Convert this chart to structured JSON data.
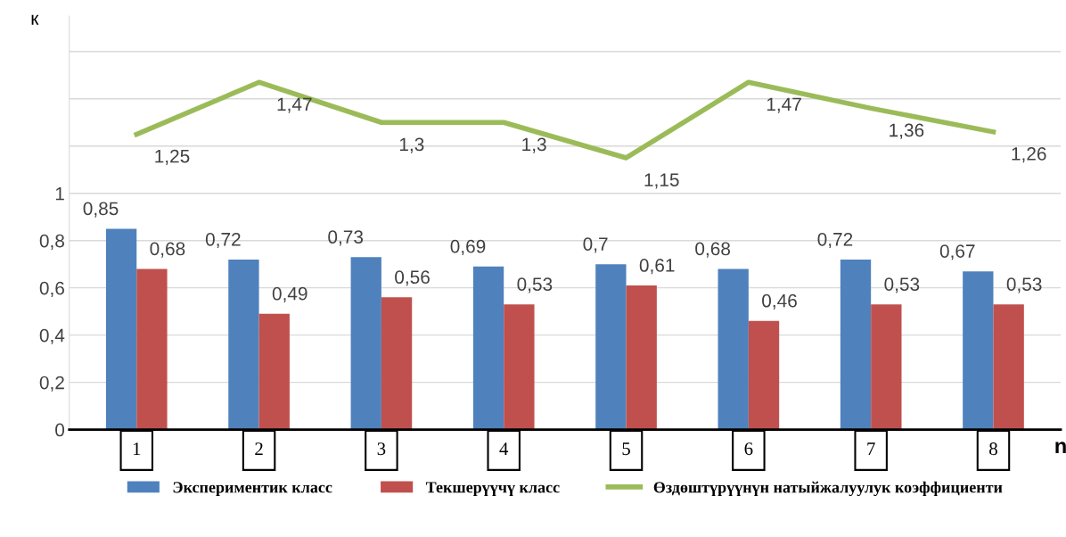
{
  "chart_data": {
    "type": "bar",
    "xlabel": "n",
    "ylabel": "к",
    "categories": [
      "1",
      "2",
      "3",
      "4",
      "5",
      "6",
      "7",
      "8"
    ],
    "series": [
      {
        "name": "Экспериментик класс",
        "color": "#4f81bd",
        "values": [
          0.85,
          0.72,
          0.73,
          0.69,
          0.7,
          0.68,
          0.72,
          0.67
        ],
        "value_labels": [
          "0,85",
          "0,72",
          "0,73",
          "0,69",
          "0,7",
          "0,68",
          "0,72",
          "0,67"
        ]
      },
      {
        "name": "Текшерүүчү класс",
        "color": "#c0504d",
        "values": [
          0.68,
          0.49,
          0.56,
          0.53,
          0.61,
          0.46,
          0.53,
          0.53
        ],
        "value_labels": [
          "0,68",
          "0,49",
          "0,56",
          "0,53",
          "0,61",
          "0,46",
          "0,53",
          "0,53"
        ]
      },
      {
        "name": "Өздөштүрүүнүн натыйжалуулук коэффициенти",
        "type": "line",
        "color": "#9bbb59",
        "marker": "none",
        "line_style": "solid",
        "values": [
          1.25,
          1.47,
          1.3,
          1.3,
          1.15,
          1.47,
          1.36,
          1.26
        ],
        "value_labels": [
          "1,25",
          "1,47",
          "1,3",
          "1,3",
          "1,15",
          "1,47",
          "1,36",
          "1,26"
        ]
      }
    ],
    "ylim": [
      0,
      1.75
    ],
    "yticks": [
      {
        "value": 0,
        "label": "0"
      },
      {
        "value": 0.2,
        "label": "0,2"
      },
      {
        "value": 0.4,
        "label": "0,4"
      },
      {
        "value": 0.6,
        "label": "0,6"
      },
      {
        "value": 0.8,
        "label": "0,8"
      },
      {
        "value": 1,
        "label": "1"
      },
      {
        "value": 1.2,
        "label": null
      },
      {
        "value": 1.4,
        "label": null
      },
      {
        "value": 1.6,
        "label": null
      }
    ],
    "grid": "y",
    "legend": "bottom"
  }
}
